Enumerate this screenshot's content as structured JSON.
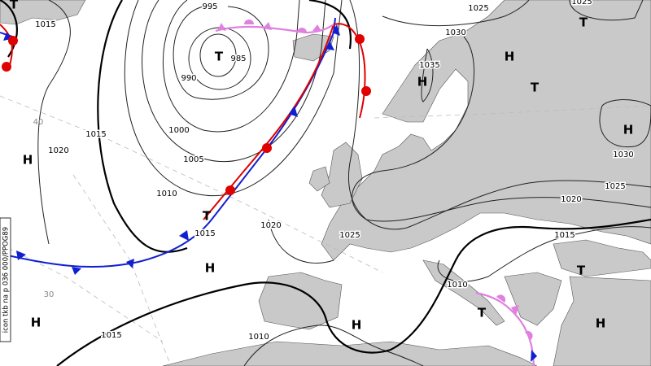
{
  "map": {
    "source_label": "icon tkb na p 036 000/PPOG89",
    "latitude_labels": [
      "40",
      "30"
    ],
    "pressure_labels": [
      "995",
      "985",
      "990",
      "1000",
      "1005",
      "1010",
      "1015",
      "1015",
      "1020",
      "1015",
      "1025",
      "1030",
      "1035",
      "1030",
      "1025",
      "1020",
      "1020",
      "1025",
      "1015",
      "1010",
      "1015",
      "1010",
      "1025"
    ],
    "centers": [
      "T",
      "T",
      "H",
      "H",
      "T",
      "H",
      "H",
      "T",
      "H",
      "T",
      "H",
      "H",
      "T",
      "H",
      "T"
    ]
  }
}
